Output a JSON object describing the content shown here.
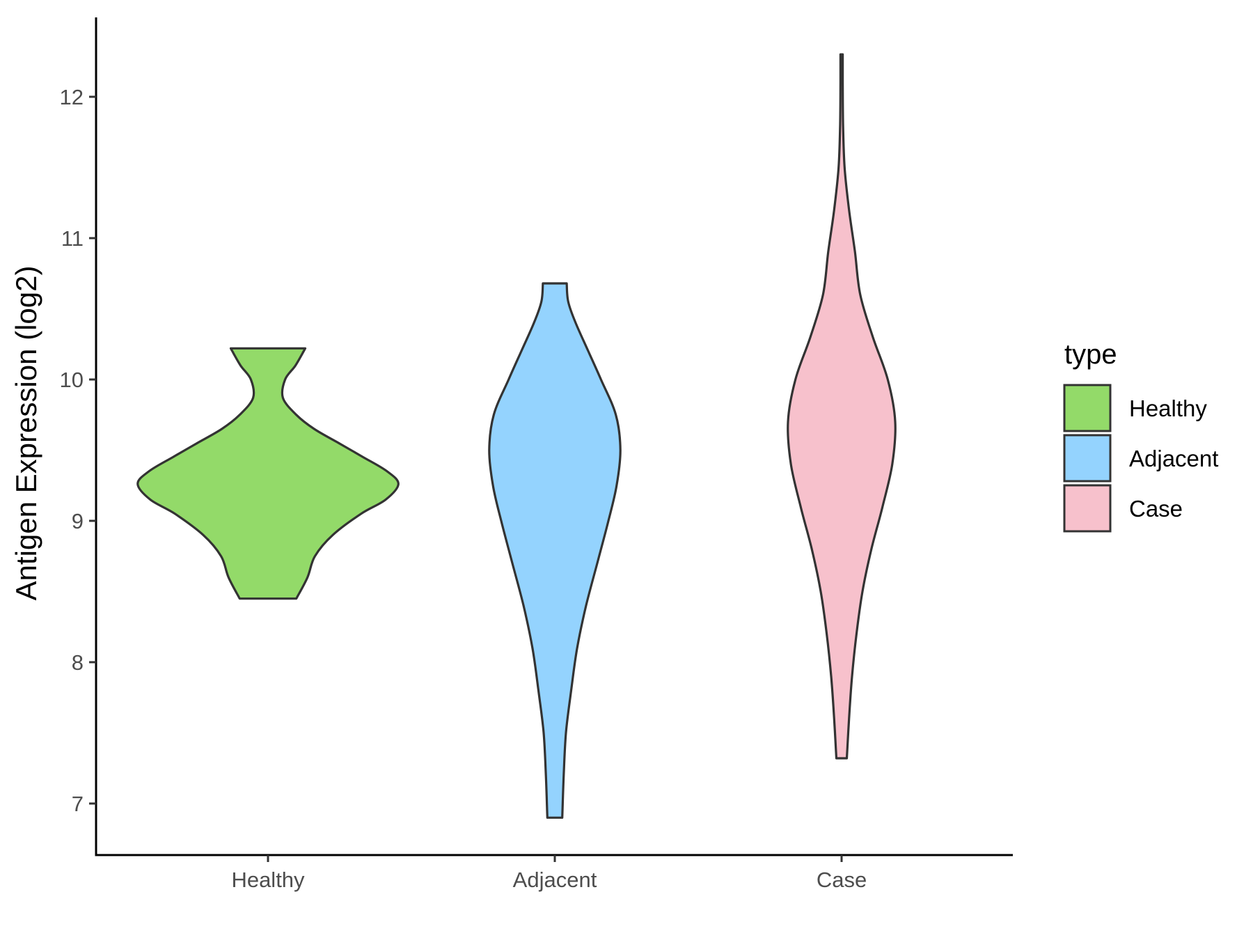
{
  "chart_data": {
    "type": "violin",
    "ylabel": "Antigen Expression (log2)",
    "xlabel": "",
    "categories": [
      "Healthy",
      "Adjacent",
      "Case"
    ],
    "yticks": [
      7,
      8,
      9,
      10,
      11,
      12
    ],
    "ylim": [
      6.6,
      12.6
    ],
    "grid": false,
    "legend": {
      "title": "type",
      "position": "right",
      "entries": [
        "Healthy",
        "Adjacent",
        "Case"
      ]
    },
    "colors": {
      "Healthy": "#93DA69",
      "Adjacent": "#94D3FE",
      "Case": "#F7C1CC",
      "outline": "#333333"
    },
    "series": [
      {
        "name": "Healthy",
        "min": 8.45,
        "max": 10.22,
        "density": [
          [
            8.45,
            0.38
          ],
          [
            8.6,
            0.53
          ],
          [
            8.75,
            0.63
          ],
          [
            8.9,
            0.87
          ],
          [
            9.05,
            1.25
          ],
          [
            9.15,
            1.58
          ],
          [
            9.26,
            1.75
          ],
          [
            9.35,
            1.6
          ],
          [
            9.45,
            1.28
          ],
          [
            9.55,
            0.95
          ],
          [
            9.65,
            0.62
          ],
          [
            9.75,
            0.38
          ],
          [
            9.87,
            0.2
          ],
          [
            10.0,
            0.23
          ],
          [
            10.1,
            0.37
          ],
          [
            10.22,
            0.5
          ]
        ]
      },
      {
        "name": "Adjacent",
        "min": 6.9,
        "max": 10.68,
        "density": [
          [
            6.9,
            0.1
          ],
          [
            7.2,
            0.12
          ],
          [
            7.5,
            0.15
          ],
          [
            7.8,
            0.22
          ],
          [
            8.1,
            0.3
          ],
          [
            8.4,
            0.42
          ],
          [
            8.7,
            0.57
          ],
          [
            9.0,
            0.72
          ],
          [
            9.25,
            0.83
          ],
          [
            9.5,
            0.88
          ],
          [
            9.75,
            0.82
          ],
          [
            10.0,
            0.62
          ],
          [
            10.2,
            0.45
          ],
          [
            10.4,
            0.28
          ],
          [
            10.55,
            0.18
          ],
          [
            10.68,
            0.16
          ]
        ]
      },
      {
        "name": "Case",
        "min": 7.32,
        "max": 12.3,
        "density": [
          [
            7.32,
            0.07
          ],
          [
            7.6,
            0.1
          ],
          [
            7.9,
            0.14
          ],
          [
            8.2,
            0.2
          ],
          [
            8.5,
            0.28
          ],
          [
            8.8,
            0.4
          ],
          [
            9.1,
            0.55
          ],
          [
            9.4,
            0.68
          ],
          [
            9.7,
            0.72
          ],
          [
            10.0,
            0.62
          ],
          [
            10.3,
            0.42
          ],
          [
            10.6,
            0.25
          ],
          [
            10.9,
            0.18
          ],
          [
            11.2,
            0.1
          ],
          [
            11.5,
            0.04
          ],
          [
            11.8,
            0.02
          ],
          [
            12.1,
            0.015
          ],
          [
            12.3,
            0.015
          ]
        ]
      }
    ]
  }
}
